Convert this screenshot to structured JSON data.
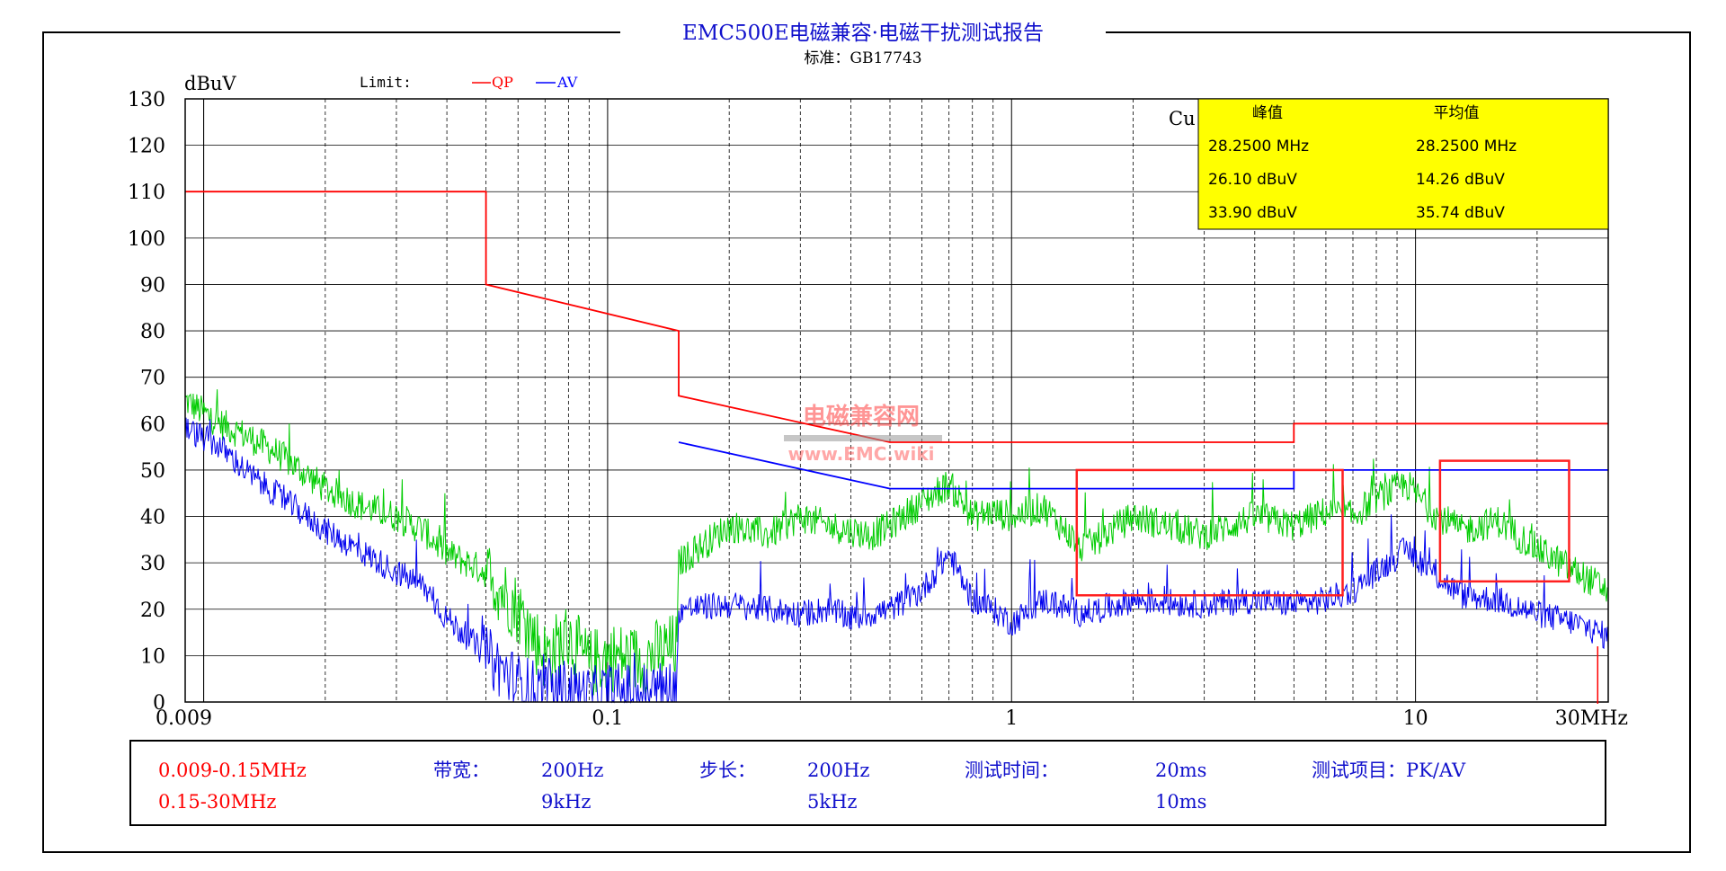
{
  "report": {
    "title": "EMC500E电磁兼容·电磁干扰测试报告",
    "standard": "标准：GB17743"
  },
  "colors": {
    "qp": "#ff0000",
    "av": "#0000ff",
    "peak_trace": "#00cc00",
    "avg_trace": "#0000ee",
    "marker_box": "#ff2020",
    "readout_bg": "#ffff00",
    "watermark": "#ff4040"
  },
  "legend": {
    "limit_label": "Limit:",
    "qp_label": "QP",
    "av_label": "AV"
  },
  "readout": {
    "partial_label": "Cu",
    "headers": [
      "峰值",
      "平均值"
    ],
    "rows": [
      [
        "28.2500 MHz",
        "28.2500 MHz"
      ],
      [
        "26.10 dBuV",
        "14.26 dBuV"
      ],
      [
        "33.90 dBuV",
        "35.74 dBuV"
      ]
    ]
  },
  "watermark": {
    "line1": "电磁兼容网",
    "line2": "www.EMC.wiki"
  },
  "footer": {
    "range1": "0.009-0.15MHz",
    "range2": "0.15-30MHz",
    "bw_label": "带宽：",
    "bw1": "200Hz",
    "bw2": "9kHz",
    "step_label": "步长：",
    "step1": "200Hz",
    "step2": "5kHz",
    "time_label": "测试时间：",
    "time1": "20ms",
    "time2": "10ms",
    "item_label": "测试项目：PK/AV"
  },
  "chart_data": {
    "type": "line",
    "ylabel": "dBuV",
    "xscale": "log",
    "xlim": [
      0.009,
      30
    ],
    "ylim": [
      0,
      130
    ],
    "yticks": [
      0,
      10,
      20,
      30,
      40,
      50,
      60,
      70,
      80,
      90,
      100,
      110,
      120,
      130
    ],
    "xticks": [
      {
        "value": 0.009,
        "label": "0.009"
      },
      {
        "value": 0.1,
        "label": "0.1"
      },
      {
        "value": 1,
        "label": "1"
      },
      {
        "value": 10,
        "label": "10"
      },
      {
        "value": 30,
        "label": "30MHz"
      }
    ],
    "grid": true,
    "series": [
      {
        "name": "QP",
        "kind": "limit",
        "points": [
          [
            0.009,
            110
          ],
          [
            0.05,
            110
          ],
          [
            0.05,
            90
          ],
          [
            0.15,
            80
          ],
          [
            0.15,
            66
          ],
          [
            0.5,
            56
          ],
          [
            5,
            56
          ],
          [
            5,
            60
          ],
          [
            30,
            60
          ]
        ]
      },
      {
        "name": "AV",
        "kind": "limit",
        "points": [
          [
            0.15,
            56
          ],
          [
            0.5,
            46
          ],
          [
            5,
            46
          ],
          [
            5,
            50
          ],
          [
            30,
            50
          ]
        ]
      },
      {
        "kind": "peak",
        "points": [
          [
            0.009,
            65
          ],
          [
            0.011,
            60
          ],
          [
            0.013,
            57
          ],
          [
            0.015,
            54
          ],
          [
            0.018,
            49
          ],
          [
            0.02,
            46
          ],
          [
            0.025,
            42
          ],
          [
            0.03,
            40
          ],
          [
            0.035,
            37
          ],
          [
            0.04,
            32
          ],
          [
            0.045,
            30
          ],
          [
            0.05,
            28
          ],
          [
            0.06,
            20
          ],
          [
            0.07,
            10
          ],
          [
            0.08,
            14
          ],
          [
            0.09,
            8
          ],
          [
            0.1,
            10
          ],
          [
            0.12,
            9
          ],
          [
            0.149,
            12
          ],
          [
            0.15,
            30
          ],
          [
            0.2,
            38
          ],
          [
            0.25,
            36
          ],
          [
            0.3,
            40
          ],
          [
            0.35,
            38
          ],
          [
            0.4,
            37
          ],
          [
            0.45,
            36
          ],
          [
            0.5,
            38
          ],
          [
            0.6,
            43
          ],
          [
            0.7,
            47
          ],
          [
            0.8,
            40
          ],
          [
            0.9,
            41
          ],
          [
            1,
            40
          ],
          [
            1.2,
            42
          ],
          [
            1.5,
            33
          ],
          [
            2,
            40
          ],
          [
            3,
            36
          ],
          [
            4,
            40
          ],
          [
            5,
            38
          ],
          [
            6,
            41
          ],
          [
            7,
            40
          ],
          [
            8,
            44
          ],
          [
            9.5,
            47
          ],
          [
            11,
            41
          ],
          [
            13,
            37
          ],
          [
            16,
            39
          ],
          [
            20,
            33
          ],
          [
            25,
            28
          ],
          [
            30,
            24
          ]
        ]
      },
      {
        "kind": "average",
        "points": [
          [
            0.009,
            59
          ],
          [
            0.011,
            55
          ],
          [
            0.013,
            49
          ],
          [
            0.015,
            45
          ],
          [
            0.018,
            40
          ],
          [
            0.02,
            37
          ],
          [
            0.025,
            32
          ],
          [
            0.03,
            28
          ],
          [
            0.035,
            25
          ],
          [
            0.04,
            18
          ],
          [
            0.045,
            14
          ],
          [
            0.05,
            10
          ],
          [
            0.06,
            4
          ],
          [
            0.07,
            2
          ],
          [
            0.08,
            3
          ],
          [
            0.09,
            1
          ],
          [
            0.1,
            2
          ],
          [
            0.12,
            2
          ],
          [
            0.149,
            3
          ],
          [
            0.15,
            20
          ],
          [
            0.2,
            21
          ],
          [
            0.25,
            20
          ],
          [
            0.3,
            19
          ],
          [
            0.35,
            20
          ],
          [
            0.4,
            18
          ],
          [
            0.5,
            20
          ],
          [
            0.6,
            24
          ],
          [
            0.7,
            32
          ],
          [
            0.8,
            22
          ],
          [
            0.9,
            20
          ],
          [
            1,
            17
          ],
          [
            1.2,
            22
          ],
          [
            1.5,
            19
          ],
          [
            2,
            22
          ],
          [
            3,
            21
          ],
          [
            4,
            22
          ],
          [
            5,
            21
          ],
          [
            6,
            22
          ],
          [
            7,
            24
          ],
          [
            8,
            28
          ],
          [
            9.5,
            33
          ],
          [
            11,
            28
          ],
          [
            13,
            23
          ],
          [
            16,
            22
          ],
          [
            20,
            19
          ],
          [
            25,
            17
          ],
          [
            30,
            14
          ]
        ]
      }
    ],
    "marker_boxes": [
      {
        "x": [
          1.45,
          6.6
        ],
        "y": [
          23,
          50
        ]
      },
      {
        "x": [
          11.5,
          24
        ],
        "y": [
          26,
          52
        ]
      }
    ],
    "marker_frequency": 28.25
  }
}
